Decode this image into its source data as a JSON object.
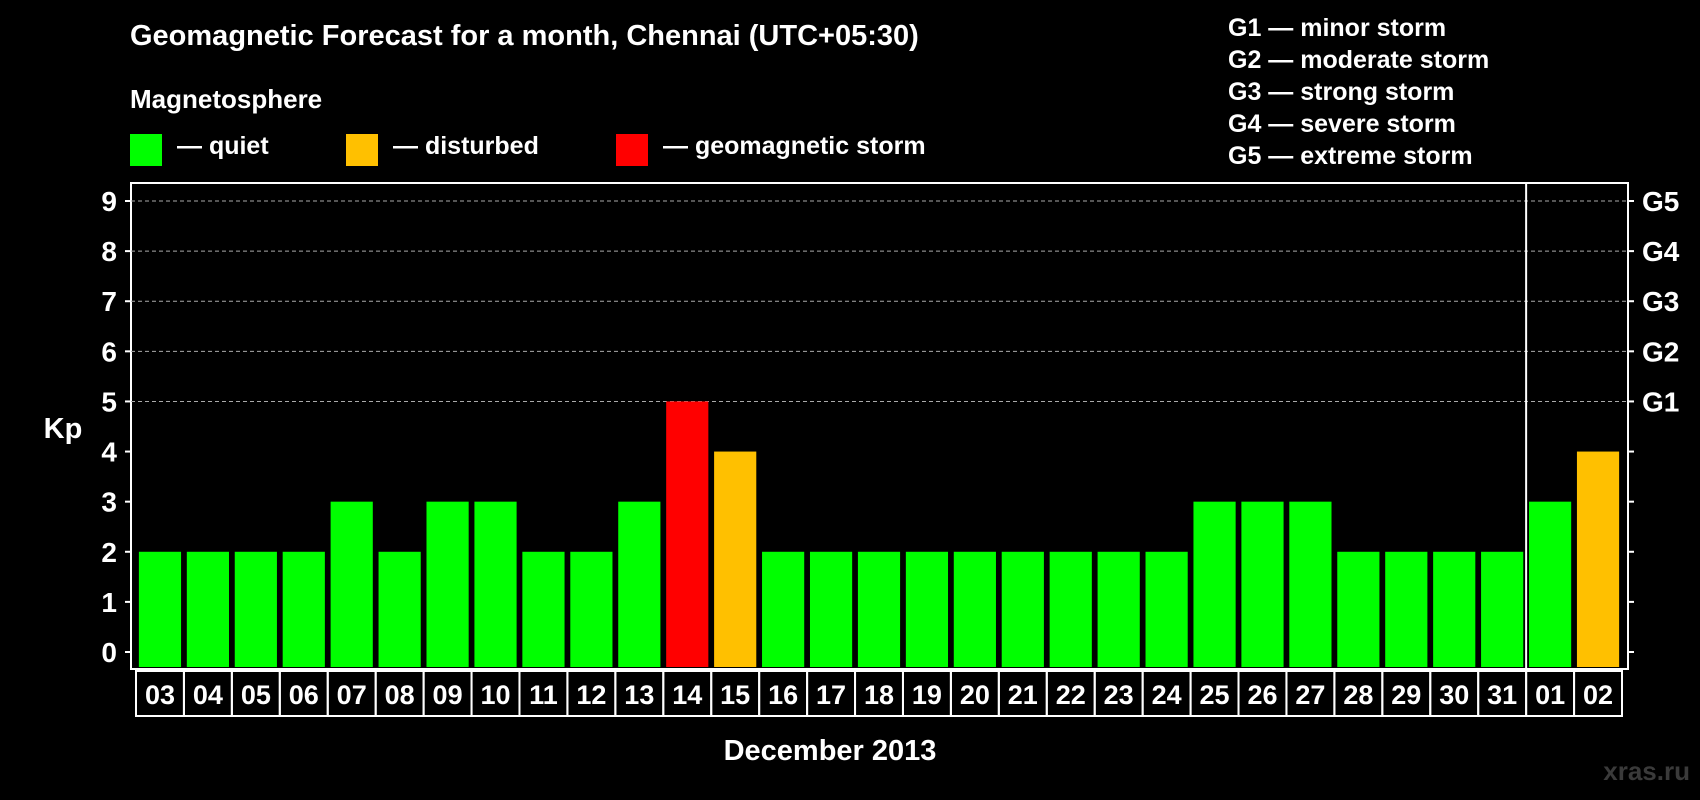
{
  "title": "Geomagnetic Forecast for a month, Chennai (UTC+05:30)",
  "legend": {
    "heading": "Magnetosphere",
    "items": [
      {
        "label": "— quiet",
        "color": "#00ff00"
      },
      {
        "label": "— disturbed",
        "color": "#ffc000"
      },
      {
        "label": "— geomagnetic storm",
        "color": "#ff0000"
      }
    ],
    "g_scale": [
      "G1 — minor storm",
      "G2 — moderate storm",
      "G3 — strong storm",
      "G4 — severe storm",
      "G5 — extreme storm"
    ]
  },
  "watermark": "xras.ru",
  "chart_data": {
    "type": "bar",
    "title": "Geomagnetic Forecast for a month, Chennai (UTC+05:30)",
    "xlabel": "December 2013",
    "ylabel": "Kp",
    "ylim": [
      0,
      9
    ],
    "yticks": [
      "0",
      "1",
      "2",
      "3",
      "4",
      "5",
      "6",
      "7",
      "8",
      "9"
    ],
    "right_ticks": [
      {
        "kp": 5,
        "label": "G1"
      },
      {
        "kp": 6,
        "label": "G2"
      },
      {
        "kp": 7,
        "label": "G3"
      },
      {
        "kp": 8,
        "label": "G4"
      },
      {
        "kp": 9,
        "label": "G5"
      }
    ],
    "month_divider_after": "31",
    "categories": [
      "03",
      "04",
      "05",
      "06",
      "07",
      "08",
      "09",
      "10",
      "11",
      "12",
      "13",
      "14",
      "15",
      "16",
      "17",
      "18",
      "19",
      "20",
      "21",
      "22",
      "23",
      "24",
      "25",
      "26",
      "27",
      "28",
      "29",
      "30",
      "31",
      "01",
      "02"
    ],
    "values": [
      2,
      2,
      2,
      2,
      3,
      2,
      3,
      3,
      2,
      2,
      3,
      5,
      4,
      2,
      2,
      2,
      2,
      2,
      2,
      2,
      2,
      2,
      3,
      3,
      3,
      2,
      2,
      2,
      2,
      3,
      4
    ],
    "status": [
      "quiet",
      "quiet",
      "quiet",
      "quiet",
      "quiet",
      "quiet",
      "quiet",
      "quiet",
      "quiet",
      "quiet",
      "quiet",
      "geomagnetic storm",
      "disturbed",
      "quiet",
      "quiet",
      "quiet",
      "quiet",
      "quiet",
      "quiet",
      "quiet",
      "quiet",
      "quiet",
      "quiet",
      "quiet",
      "quiet",
      "quiet",
      "quiet",
      "quiet",
      "quiet",
      "quiet",
      "disturbed"
    ],
    "grid": true
  }
}
